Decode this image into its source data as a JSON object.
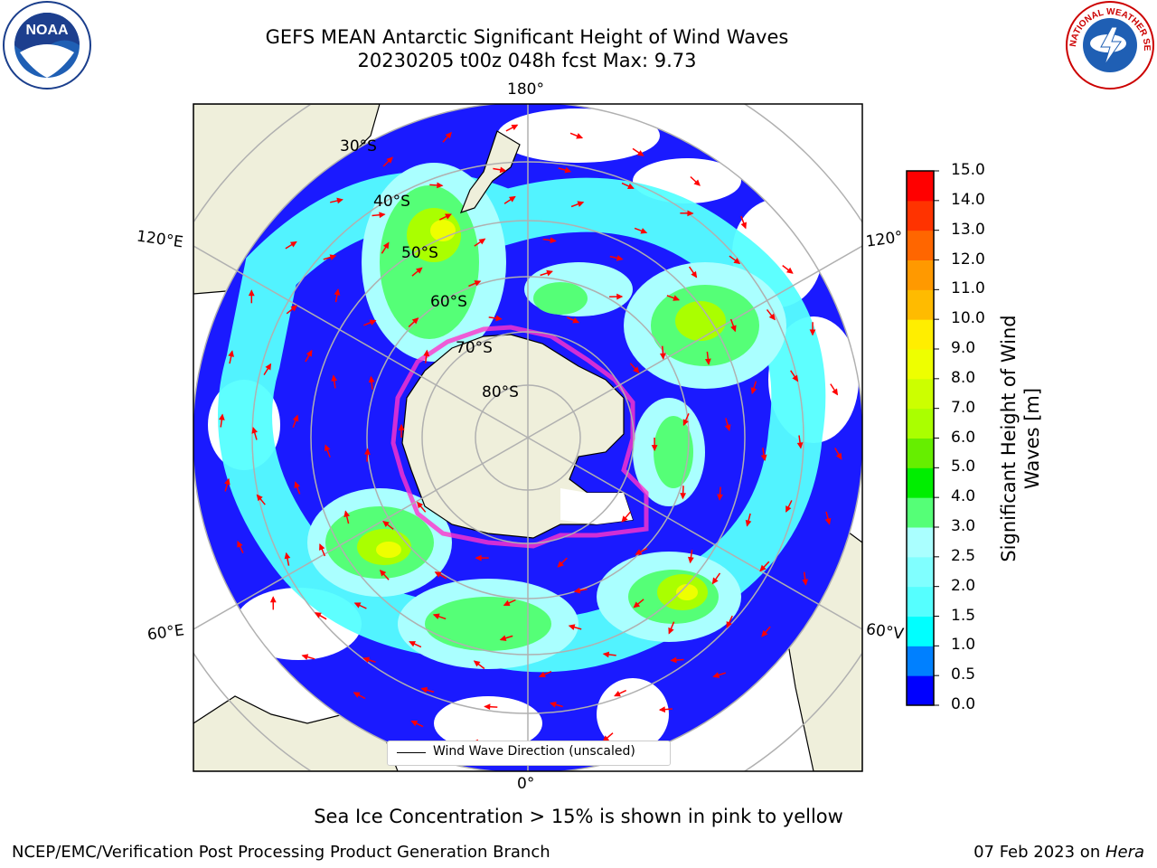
{
  "title": {
    "line1": "GEFS MEAN Antarctic Significant Height of Wind Waves",
    "line2": "20230205 t00z 048h fcst   Max: 9.73"
  },
  "map": {
    "projection": "south-polar-stereographic",
    "longitude_labels": {
      "top": "180°",
      "bottom": "0°",
      "upper_left": "120°E",
      "upper_right": "120°",
      "lower_left": "60°E",
      "lower_right": "60°V"
    },
    "latitude_labels": [
      "30°S",
      "40°S",
      "50°S",
      "60°S",
      "70°S",
      "80°S"
    ],
    "legend": "Wind Wave Direction (unscaled)",
    "colors": {
      "land": "#efefdb",
      "ocean_no_data": "#ffffff",
      "arrow": "#ff0000",
      "sea_ice_edge": "#ff33cc",
      "graticule": "#b0b0b0"
    }
  },
  "colorbar": {
    "label": "Significant Height of Wind Waves [m]",
    "label_line1": "Significant Height of Wind",
    "label_line2": "Waves [m]",
    "ticks": [
      "0.0",
      "0.5",
      "1.0",
      "1.5",
      "2.0",
      "2.5",
      "3.0",
      "4.0",
      "5.0",
      "6.0",
      "7.0",
      "8.0",
      "9.0",
      "10.0",
      "11.0",
      "12.0",
      "13.0",
      "14.0",
      "15.0"
    ],
    "colors": [
      "#0000ff",
      "#0080ff",
      "#00ffff",
      "#55ffff",
      "#80ffff",
      "#aaffff",
      "#55ff77",
      "#00ee00",
      "#66ee00",
      "#aaff00",
      "#ccff00",
      "#eeff00",
      "#ffee00",
      "#ffbb00",
      "#ff9900",
      "#ff6600",
      "#ff3300",
      "#ff0000"
    ]
  },
  "note": "Sea Ice Concentration > 15% is shown in pink to yellow",
  "footer": {
    "left": "NCEP/EMC/Verification Post Processing Product Generation Branch",
    "right_date": "07 Feb 2023 on ",
    "right_machine": "Hera"
  },
  "logos": {
    "left": "NOAA",
    "right": "NATIONAL WEATHER SERVICE"
  }
}
